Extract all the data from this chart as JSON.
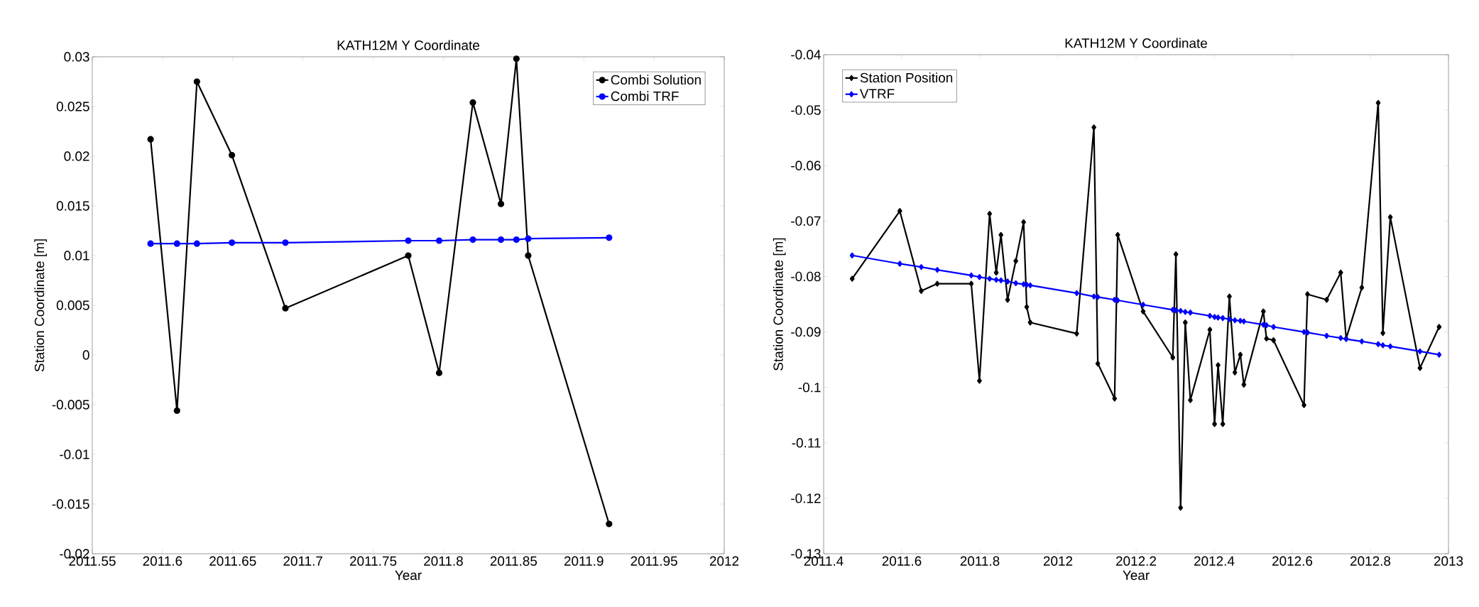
{
  "chart_data": [
    {
      "type": "line",
      "title": "KATH12M Y Coordinate",
      "xlabel": "Year",
      "ylabel": "Station Coordinate [m]",
      "x": [
        2011.5915,
        2011.6103,
        2011.6245,
        2011.6494,
        2011.6875,
        2011.775,
        2011.797,
        2011.821,
        2011.841,
        2011.852,
        2011.8604,
        2011.918
      ],
      "series": [
        {
          "name": "Combi Solution",
          "color": "#000000",
          "values": [
            0.0217,
            -0.0056,
            0.0275,
            0.0201,
            0.0047,
            0.01,
            -0.0018,
            0.0254,
            0.0152,
            0.0298,
            0.01,
            -0.017
          ]
        },
        {
          "name": "Combi TRF",
          "color": "#0000ff",
          "values": [
            0.0112,
            0.0112,
            0.0112,
            0.0113,
            0.0113,
            0.0115,
            0.0115,
            0.0116,
            0.0116,
            0.0116,
            0.0117,
            0.0118
          ]
        }
      ],
      "xlim": [
        2011.55,
        2012
      ],
      "xticks": [
        2011.55,
        2011.6,
        2011.65,
        2011.7,
        2011.75,
        2011.8,
        2011.85,
        2011.9,
        2011.95,
        2012
      ],
      "ylim": [
        -0.02,
        0.03
      ],
      "yticks": [
        -0.02,
        -0.015,
        -0.01,
        -0.005,
        0,
        0.005,
        0.01,
        0.015,
        0.02,
        0.025,
        0.03
      ],
      "legend": "top right",
      "marker": "circle"
    },
    {
      "type": "line",
      "title": "KATH12M Y Coordinate",
      "xlabel": "Year",
      "ylabel": "Station Coordinate [m]",
      "x": [
        2011.473,
        2011.595,
        2011.65,
        2011.691,
        2011.778,
        2011.799,
        2011.825,
        2011.842,
        2011.854,
        2011.871,
        2011.892,
        2011.912,
        2011.92,
        2011.929,
        2012.048,
        2012.092,
        2012.102,
        2012.145,
        2012.153,
        2012.218,
        2012.294,
        2012.302,
        2012.314,
        2012.326,
        2012.339,
        2012.389,
        2012.401,
        2012.41,
        2012.422,
        2012.439,
        2012.453,
        2012.467,
        2012.476,
        2012.526,
        2012.534,
        2012.552,
        2012.63,
        2012.639,
        2012.688,
        2012.724,
        2012.738,
        2012.778,
        2012.82,
        2012.832,
        2012.851,
        2012.927,
        2012.976
      ],
      "series": [
        {
          "name": "Station Position",
          "color": "#000000",
          "values": [
            -0.0804,
            -0.0682,
            -0.0826,
            -0.0813,
            -0.0813,
            -0.0988,
            -0.0687,
            -0.0793,
            -0.0725,
            -0.0842,
            -0.0772,
            -0.0702,
            -0.0855,
            -0.0883,
            -0.0903,
            -0.0531,
            -0.0957,
            -0.102,
            -0.0725,
            -0.0863,
            -0.0946,
            -0.076,
            -0.1217,
            -0.0883,
            -0.1023,
            -0.0896,
            -0.1066,
            -0.096,
            -0.1066,
            -0.0836,
            -0.0973,
            -0.0941,
            -0.0995,
            -0.0863,
            -0.0912,
            -0.0915,
            -0.1032,
            -0.0832,
            -0.0842,
            -0.0793,
            -0.0912,
            -0.082,
            -0.0487,
            -0.0902,
            -0.0693,
            -0.0965,
            -0.0891
          ]
        },
        {
          "name": "VTRF",
          "color": "#0000ff",
          "values": [
            -0.0762,
            -0.0777,
            -0.0783,
            -0.0788,
            -0.0798,
            -0.0801,
            -0.0804,
            -0.0806,
            -0.0807,
            -0.0809,
            -0.0812,
            -0.0814,
            -0.0815,
            -0.0816,
            -0.083,
            -0.0836,
            -0.0837,
            -0.0842,
            -0.0843,
            -0.0851,
            -0.086,
            -0.0861,
            -0.0862,
            -0.0864,
            -0.0865,
            -0.0871,
            -0.0873,
            -0.0874,
            -0.0875,
            -0.0877,
            -0.0879,
            -0.088,
            -0.0881,
            -0.0887,
            -0.0888,
            -0.0891,
            -0.09,
            -0.0901,
            -0.0907,
            -0.0911,
            -0.0913,
            -0.0917,
            -0.0922,
            -0.0924,
            -0.0926,
            -0.0935,
            -0.0941
          ]
        }
      ],
      "xlim": [
        2011.4,
        2013
      ],
      "xticks": [
        2011.4,
        2011.6,
        2011.8,
        2012,
        2012.2,
        2012.4,
        2012.6,
        2012.8,
        2013
      ],
      "ylim": [
        -0.13,
        -0.04
      ],
      "yticks": [
        -0.13,
        -0.12,
        -0.11,
        -0.1,
        -0.09,
        -0.08,
        -0.07,
        -0.06,
        -0.05,
        -0.04
      ],
      "legend": "top left",
      "marker": "diamond"
    }
  ]
}
